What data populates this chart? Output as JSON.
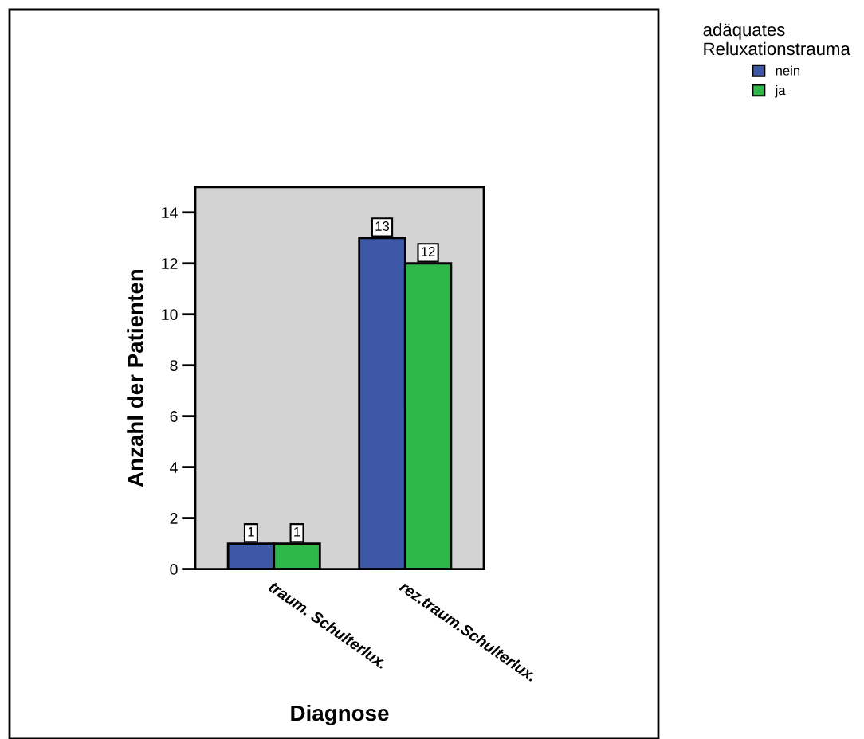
{
  "chart_data": {
    "type": "bar",
    "xlabel": "Diagnose",
    "ylabel": "Anzahl der Patienten",
    "legend_title": "adäquates\nReluxationstrauma",
    "categories": [
      "traum. Schulterlux.",
      "rez.traum.Schulterlux."
    ],
    "series": [
      {
        "name": "nein",
        "color": "#3e58a8",
        "values": [
          1,
          13
        ]
      },
      {
        "name": "ja",
        "color": "#2fb84a",
        "values": [
          1,
          12
        ]
      }
    ],
    "ylim": [
      0,
      15
    ],
    "yticks": [
      0,
      2,
      4,
      6,
      8,
      10,
      12,
      14
    ],
    "data_labels": true,
    "grid": false,
    "legend": "top right"
  }
}
